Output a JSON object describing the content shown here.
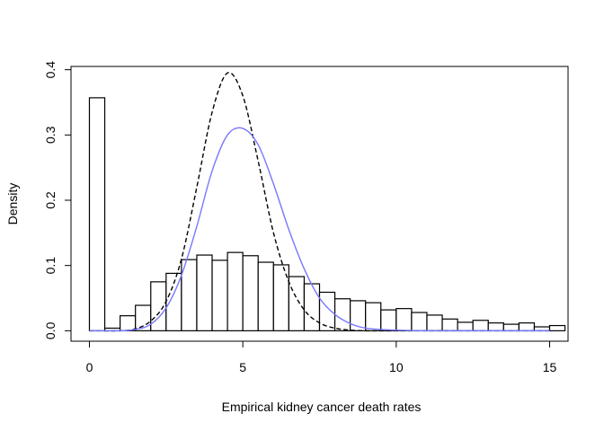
{
  "chart_data": {
    "type": "bar",
    "title": "",
    "xlabel": "Empirical kidney cancer death rates",
    "ylabel": "Density",
    "xlim": [
      -0.6,
      15.6
    ],
    "ylim": [
      -0.016,
      0.405
    ],
    "xticks": [
      0,
      5,
      10,
      15
    ],
    "xtick_labels": [
      "0",
      "5",
      "10",
      "15"
    ],
    "yticks": [
      0.0,
      0.1,
      0.2,
      0.3,
      0.4
    ],
    "ytick_labels": [
      "0.0",
      "0.1",
      "0.2",
      "0.3",
      "0.4"
    ],
    "grid": false,
    "histogram": {
      "bin_width": 0.5,
      "bin_starts": [
        0,
        0.5,
        1,
        1.5,
        2,
        2.5,
        3,
        3.5,
        4,
        4.5,
        5,
        5.5,
        6,
        6.5,
        7,
        7.5,
        8,
        8.5,
        9,
        9.5,
        10,
        10.5,
        11,
        11.5,
        12,
        12.5,
        13,
        13.5,
        14,
        14.5,
        15
      ],
      "densities": [
        0.357,
        0.004,
        0.023,
        0.039,
        0.075,
        0.088,
        0.109,
        0.116,
        0.108,
        0.12,
        0.115,
        0.105,
        0.101,
        0.083,
        0.072,
        0.059,
        0.049,
        0.046,
        0.043,
        0.032,
        0.034,
        0.028,
        0.024,
        0.018,
        0.013,
        0.016,
        0.012,
        0.01,
        0.012,
        0.006,
        0.008
      ],
      "fill": "#ffffff",
      "stroke": "#000000"
    },
    "curves": [
      {
        "style": "dashed",
        "color": "#000000",
        "x": [
          0,
          1,
          1.5,
          2,
          2.5,
          3,
          3.5,
          4,
          4.5,
          5,
          5.5,
          6,
          6.5,
          7,
          7.5,
          8,
          8.5,
          9,
          10,
          11,
          12,
          13,
          14,
          15
        ],
        "y": [
          0,
          0,
          0.003,
          0.015,
          0.045,
          0.11,
          0.22,
          0.335,
          0.395,
          0.36,
          0.26,
          0.15,
          0.075,
          0.032,
          0.012,
          0.004,
          0.001,
          0,
          0,
          0,
          0,
          0,
          0,
          0
        ]
      },
      {
        "style": "solid",
        "color": "#7777ff",
        "x": [
          0,
          1,
          1.5,
          2,
          2.5,
          3,
          3.5,
          4,
          4.5,
          5,
          5.5,
          6,
          6.5,
          7,
          7.5,
          8,
          8.5,
          9,
          9.5,
          10,
          11,
          12,
          13,
          14,
          15
        ],
        "y": [
          0,
          0,
          0.002,
          0.01,
          0.035,
          0.085,
          0.16,
          0.245,
          0.3,
          0.31,
          0.285,
          0.225,
          0.155,
          0.095,
          0.05,
          0.025,
          0.011,
          0.004,
          0.002,
          0.001,
          0,
          0,
          0,
          0,
          0
        ]
      }
    ]
  }
}
